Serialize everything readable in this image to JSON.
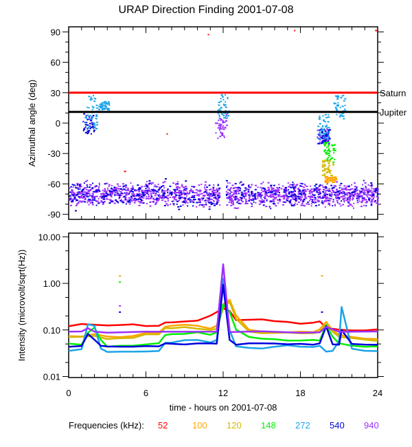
{
  "title": "URAP Direction Finding  2001-07-08",
  "chart_data": [
    {
      "type": "scatter",
      "panel": "top",
      "title": "URAP Direction Finding  2001-07-08",
      "xlabel": "",
      "ylabel": "Azimuthal angle (deg)",
      "xlim": [
        0,
        24
      ],
      "ylim": [
        -95,
        95
      ],
      "yticks": [
        90,
        60,
        30,
        0,
        -30,
        -60,
        -90
      ],
      "ytick_labels": [
        "90",
        "60",
        "30",
        "0",
        "-30",
        "-60",
        "-90"
      ],
      "reference_lines": [
        {
          "name": "Saturn",
          "color": "#ff0000",
          "segments": [
            [
              0,
              24,
              30
            ]
          ],
          "value": 30
        },
        {
          "name": "Jupiter",
          "color": "#000000",
          "segments": [
            [
              0,
              24,
              11
            ]
          ],
          "value": 11
        }
      ],
      "series": [
        {
          "name": "940",
          "color": "#9b30ff",
          "band": {
            "x": [
              0,
              24
            ],
            "y_center": -70,
            "y_spread": 8
          },
          "clusters": [
            {
              "x": 11.8,
              "y": [
                -15,
                10
              ]
            },
            {
              "x": 19.7,
              "y": [
                -20,
                -5
              ]
            }
          ]
        },
        {
          "name": "540",
          "color": "#0000dd",
          "band": {
            "x": [
              0,
              24
            ],
            "y_center": -70,
            "y_spread": 9
          },
          "clusters": [
            {
              "x": 1.5,
              "y": [
                -10,
                12
              ]
            },
            {
              "x": 19.8,
              "y": [
                -20,
                -5
              ]
            }
          ]
        },
        {
          "name": "272",
          "color": "#1aa3e8",
          "clusters": [
            {
              "x": 1.7,
              "y": [
                -5,
                28
              ]
            },
            {
              "x": 2.7,
              "y": [
                12,
                22
              ]
            },
            {
              "x": 12.0,
              "y": [
                5,
                30
              ]
            },
            {
              "x": 21.0,
              "y": [
                5,
                28
              ]
            },
            {
              "x": 19.7,
              "y": [
                -15,
                10
              ]
            }
          ]
        },
        {
          "name": "148",
          "color": "#00ee00",
          "clusters": [
            {
              "x": 20.2,
              "y": [
                -38,
                -18
              ]
            }
          ]
        },
        {
          "name": "120",
          "color": "#d4b800",
          "clusters": [
            {
              "x": 20.1,
              "y": [
                -52,
                -35
              ]
            }
          ]
        },
        {
          "name": "100",
          "color": "#ffa500",
          "clusters": [
            {
              "x": 20.3,
              "y": [
                -58,
                -52
              ]
            }
          ]
        },
        {
          "name": "52",
          "color": "#ff0000",
          "points": [
            [
              10.8,
              88
            ],
            [
              17.5,
              92
            ],
            [
              7.6,
              -10
            ],
            [
              4.3,
              -47
            ],
            [
              23.8,
              92
            ]
          ]
        }
      ]
    },
    {
      "type": "line",
      "panel": "bottom",
      "xlabel": "time - hours on 2001-07-08",
      "ylabel": "Intensity (microvolt/sqrt(Hz))",
      "yscale": "log",
      "xlim": [
        0,
        24
      ],
      "ylim": [
        0.0095,
        12
      ],
      "xticks": [
        0,
        6,
        12,
        18,
        24
      ],
      "xtick_labels": [
        "0",
        "6",
        "12",
        "18",
        "24"
      ],
      "yticks": [
        10,
        1,
        0.1,
        0.01
      ],
      "ytick_labels": [
        "10.00",
        "1.00",
        "0.10",
        "0.01"
      ],
      "series": [
        {
          "name": "52",
          "color": "#ff0000",
          "x": [
            0,
            1,
            2,
            3,
            4,
            5,
            6,
            7,
            7.5,
            8,
            9,
            10,
            11,
            11.5,
            12,
            12.5,
            13,
            14,
            15,
            16,
            17,
            18,
            19,
            19.5,
            20,
            21,
            22,
            23,
            24
          ],
          "y": [
            0.12,
            0.13,
            0.125,
            0.13,
            0.13,
            0.13,
            0.125,
            0.125,
            0.15,
            0.15,
            0.15,
            0.16,
            0.2,
            0.25,
            0.3,
            0.25,
            0.16,
            0.16,
            0.17,
            0.15,
            0.15,
            0.14,
            0.14,
            0.15,
            0.11,
            0.1,
            0.1,
            0.1,
            0.1
          ]
        },
        {
          "name": "100",
          "color": "#ffa500",
          "x": [
            0,
            1,
            2,
            3,
            4,
            5,
            6,
            7,
            7.5,
            8,
            9,
            10,
            11,
            11.5,
            12,
            12.5,
            13,
            14,
            15,
            16,
            17,
            18,
            19,
            19.5,
            20,
            20.5,
            21,
            22,
            23,
            24
          ],
          "y": [
            0.075,
            0.075,
            0.08,
            0.07,
            0.07,
            0.075,
            0.085,
            0.085,
            0.12,
            0.12,
            0.13,
            0.12,
            0.11,
            0.12,
            0.35,
            0.45,
            0.2,
            0.1,
            0.09,
            0.09,
            0.09,
            0.09,
            0.09,
            0.1,
            0.15,
            0.1,
            0.08,
            0.07,
            0.065,
            0.065
          ]
        },
        {
          "name": "120",
          "color": "#d4b800",
          "x": [
            0,
            1,
            2,
            3,
            4,
            5,
            6,
            7,
            7.5,
            8,
            9,
            10,
            11,
            11.5,
            12,
            12.5,
            13,
            14,
            15,
            16,
            17,
            18,
            19,
            19.5,
            20,
            20.5,
            21,
            22,
            23,
            24
          ],
          "y": [
            0.07,
            0.07,
            0.075,
            0.065,
            0.065,
            0.07,
            0.08,
            0.08,
            0.11,
            0.11,
            0.12,
            0.11,
            0.1,
            0.11,
            0.3,
            0.4,
            0.18,
            0.09,
            0.085,
            0.085,
            0.085,
            0.085,
            0.085,
            0.09,
            0.13,
            0.09,
            0.07,
            0.065,
            0.06,
            0.06
          ]
        },
        {
          "name": "148",
          "color": "#00ee00",
          "x": [
            0,
            1,
            1.5,
            2,
            2.5,
            3,
            4,
            5,
            6,
            7,
            7.5,
            8,
            9,
            10,
            11,
            11.5,
            12,
            12.5,
            13,
            14,
            15,
            16,
            17,
            18,
            19,
            19.5,
            20,
            20.5,
            21,
            22,
            23,
            24
          ],
          "y": [
            0.05,
            0.05,
            0.09,
            0.11,
            0.06,
            0.045,
            0.045,
            0.045,
            0.05,
            0.05,
            0.08,
            0.08,
            0.085,
            0.09,
            0.08,
            0.09,
            0.35,
            0.25,
            0.1,
            0.07,
            0.065,
            0.065,
            0.06,
            0.06,
            0.06,
            0.06,
            0.13,
            0.07,
            0.05,
            0.045,
            0.045,
            0.045
          ]
        },
        {
          "name": "272",
          "color": "#1aa3e8",
          "x": [
            0,
            1,
            1.5,
            2,
            2.5,
            3,
            4,
            5,
            6,
            7,
            7.5,
            8,
            9,
            10,
            11,
            11.5,
            12,
            12.5,
            13,
            14,
            15,
            16,
            17,
            18,
            19,
            19.5,
            20,
            20.5,
            21,
            21.2,
            22,
            23,
            24
          ],
          "y": [
            0.035,
            0.04,
            0.13,
            0.12,
            0.04,
            0.035,
            0.035,
            0.035,
            0.035,
            0.035,
            0.055,
            0.055,
            0.06,
            0.06,
            0.055,
            0.06,
            1.3,
            0.1,
            0.045,
            0.04,
            0.04,
            0.045,
            0.045,
            0.045,
            0.045,
            0.045,
            0.035,
            0.035,
            0.06,
            0.3,
            0.04,
            0.035,
            0.035
          ]
        },
        {
          "name": "540",
          "color": "#0000dd",
          "x": [
            0,
            1,
            1.5,
            2,
            2.5,
            3,
            4,
            5,
            6,
            7,
            7.5,
            8,
            9,
            10,
            11,
            11.5,
            12,
            12.5,
            13,
            14,
            15,
            16,
            17,
            18,
            19,
            19.5,
            20,
            20.5,
            21,
            21.2,
            22,
            23,
            24
          ],
          "y": [
            0.045,
            0.045,
            0.08,
            0.06,
            0.045,
            0.045,
            0.045,
            0.045,
            0.045,
            0.045,
            0.05,
            0.05,
            0.05,
            0.05,
            0.05,
            0.05,
            0.9,
            0.06,
            0.05,
            0.05,
            0.05,
            0.05,
            0.05,
            0.05,
            0.05,
            0.05,
            0.12,
            0.05,
            0.05,
            0.1,
            0.05,
            0.05,
            0.05
          ]
        },
        {
          "name": "940",
          "color": "#9b30ff",
          "x": [
            0,
            1,
            1.5,
            2,
            3,
            6,
            9,
            11.5,
            12,
            12.5,
            15,
            18,
            19.5,
            20,
            21,
            24
          ],
          "y": [
            0.09,
            0.09,
            0.11,
            0.09,
            0.09,
            0.09,
            0.09,
            0.09,
            2.5,
            0.09,
            0.09,
            0.09,
            0.09,
            0.12,
            0.09,
            0.09
          ]
        }
      ],
      "outliers": [
        {
          "series": "120",
          "x": 3.9,
          "y": 1.5
        },
        {
          "series": "148",
          "x": 3.9,
          "y": 1.1
        },
        {
          "series": "940",
          "x": 3.9,
          "y": 0.34
        },
        {
          "series": "540",
          "x": 3.9,
          "y": 0.25
        },
        {
          "series": "120",
          "x": 19.6,
          "y": 1.5
        },
        {
          "series": "540",
          "x": 19.6,
          "y": 0.25
        }
      ]
    }
  ],
  "legend": {
    "label": "Frequencies (kHz):",
    "entries": [
      {
        "label": "52",
        "color": "#ff0000"
      },
      {
        "label": "100",
        "color": "#ffa500"
      },
      {
        "label": "120",
        "color": "#d4b800"
      },
      {
        "label": "148",
        "color": "#00ee00"
      },
      {
        "label": "272",
        "color": "#1aa3e8"
      },
      {
        "label": "540",
        "color": "#0000dd"
      },
      {
        "label": "940",
        "color": "#9b30ff"
      }
    ]
  }
}
